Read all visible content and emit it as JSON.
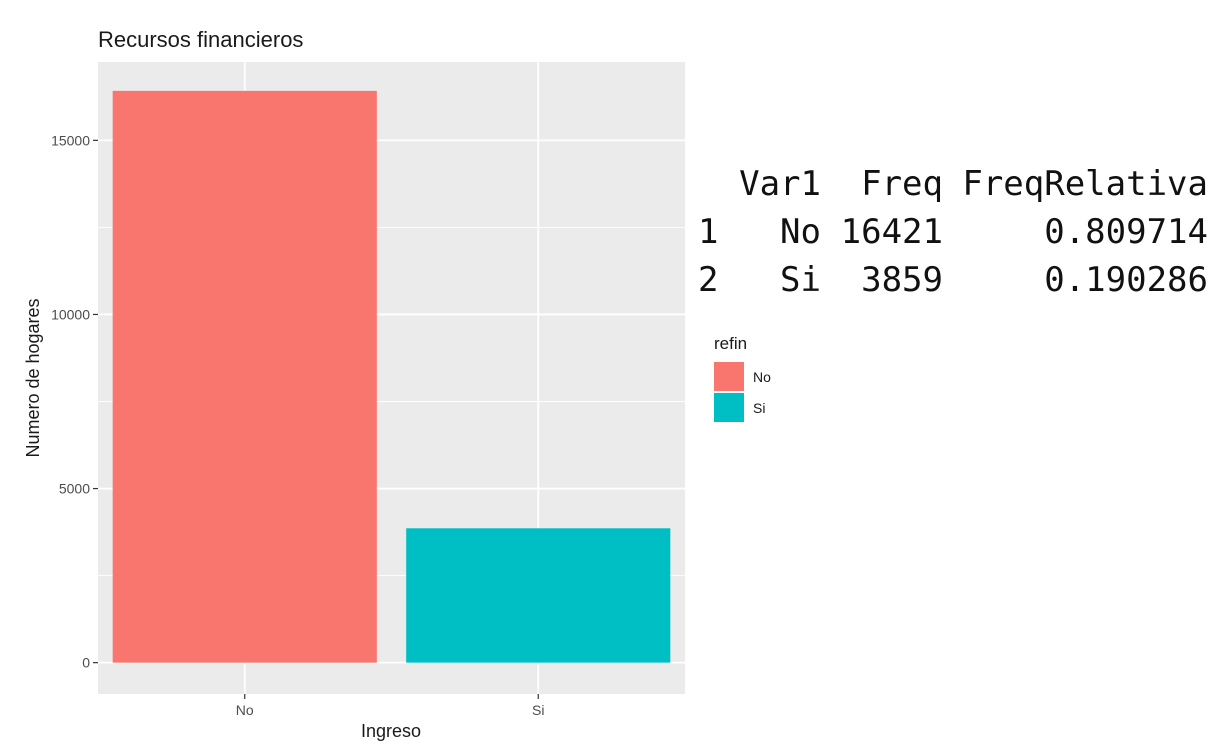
{
  "chart_data": {
    "type": "bar",
    "title": "Recursos financieros",
    "xlabel": "Ingreso",
    "ylabel": "Numero de hogares",
    "categories": [
      "No",
      "Si"
    ],
    "values": [
      16421,
      3859
    ],
    "colors": [
      "#F8766D",
      "#00BFC4"
    ],
    "ylim": [
      -900,
      17250
    ],
    "yticks": [
      0,
      5000,
      10000,
      15000
    ],
    "ytick_labels": [
      "0",
      "5000",
      "10000",
      "15000"
    ],
    "grid": true,
    "panel_background": "#EBEBEB",
    "grid_color": "#FFFFFF",
    "legend": {
      "title": "refin",
      "placement": "right",
      "entries": [
        {
          "label": "No",
          "color": "#F8766D"
        },
        {
          "label": "Si",
          "color": "#00BFC4"
        }
      ]
    }
  },
  "console_table": {
    "headers": [
      "Var1",
      "Freq",
      "FreqRelativa"
    ],
    "rows": [
      {
        "index": "1",
        "var1": "No",
        "freq": "16421",
        "freq_relativa": "0.809714"
      },
      {
        "index": "2",
        "var1": "Si",
        "freq": "3859",
        "freq_relativa": "0.190286"
      }
    ]
  }
}
